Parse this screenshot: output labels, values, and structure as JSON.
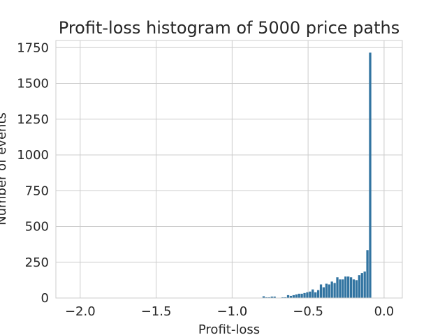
{
  "chart_data": {
    "type": "bar",
    "title": "Profit-loss histogram of 5000 price paths",
    "xlabel": "Profit-loss",
    "ylabel": "Number of events",
    "xlim": [
      -2.16,
      0.12
    ],
    "ylim": [
      0,
      1800
    ],
    "xticks": [
      -2.0,
      -1.5,
      -1.0,
      -0.5,
      0.0
    ],
    "xtick_labels": [
      "−2.0",
      "−1.5",
      "−1.0",
      "−0.5",
      "0.0"
    ],
    "yticks": [
      0,
      250,
      500,
      750,
      1000,
      1250,
      1500,
      1750
    ],
    "ytick_labels": [
      "0",
      "250",
      "500",
      "750",
      "1000",
      "1250",
      "1500",
      "1750"
    ],
    "grid": true,
    "bar_color": "#3274a1",
    "bin_width": 0.0179,
    "bins": [
      {
        "x": -0.8,
        "count": 12
      },
      {
        "x": -0.782,
        "count": 5
      },
      {
        "x": -0.764,
        "count": 5
      },
      {
        "x": -0.746,
        "count": 10
      },
      {
        "x": -0.728,
        "count": 10
      },
      {
        "x": -0.675,
        "count": 5
      },
      {
        "x": -0.657,
        "count": 5
      },
      {
        "x": -0.639,
        "count": 20
      },
      {
        "x": -0.621,
        "count": 15
      },
      {
        "x": -0.603,
        "count": 20
      },
      {
        "x": -0.585,
        "count": 25
      },
      {
        "x": -0.567,
        "count": 30
      },
      {
        "x": -0.549,
        "count": 30
      },
      {
        "x": -0.531,
        "count": 35
      },
      {
        "x": -0.513,
        "count": 40
      },
      {
        "x": -0.495,
        "count": 45
      },
      {
        "x": -0.477,
        "count": 60
      },
      {
        "x": -0.459,
        "count": 40
      },
      {
        "x": -0.441,
        "count": 55
      },
      {
        "x": -0.423,
        "count": 95
      },
      {
        "x": -0.405,
        "count": 75
      },
      {
        "x": -0.387,
        "count": 100
      },
      {
        "x": -0.369,
        "count": 95
      },
      {
        "x": -0.351,
        "count": 115
      },
      {
        "x": -0.333,
        "count": 105
      },
      {
        "x": -0.315,
        "count": 145
      },
      {
        "x": -0.297,
        "count": 130
      },
      {
        "x": -0.279,
        "count": 130
      },
      {
        "x": -0.261,
        "count": 150
      },
      {
        "x": -0.243,
        "count": 150
      },
      {
        "x": -0.225,
        "count": 145
      },
      {
        "x": -0.207,
        "count": 130
      },
      {
        "x": -0.189,
        "count": 125
      },
      {
        "x": -0.171,
        "count": 160
      },
      {
        "x": -0.153,
        "count": 175
      },
      {
        "x": -0.135,
        "count": 185
      },
      {
        "x": -0.117,
        "count": 335
      },
      {
        "x": -0.099,
        "count": 1715
      }
    ]
  }
}
